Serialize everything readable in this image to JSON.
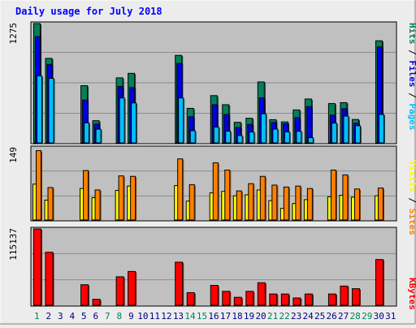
{
  "title": "Daily usage for July 2018",
  "colors": {
    "background": "#ececec",
    "plot_bg": "#c0c0c0",
    "grid": "#8c8c8c",
    "hits": "#00805c",
    "files": "#0000e6",
    "pages": "#00c0ff",
    "visits": "#ffff00",
    "sites": "#ff8000",
    "kbytes": "#ff0000",
    "title": "#0000ff",
    "weekend_day": "#00805c",
    "weekday": "#000080"
  },
  "legend_top": [
    {
      "key": "pages",
      "label": "Pages"
    },
    {
      "key": "sep1",
      "label": " / "
    },
    {
      "key": "files",
      "label": "Files"
    },
    {
      "key": "sep2",
      "label": " / "
    },
    {
      "key": "hits",
      "label": "Hits"
    }
  ],
  "legend_mid": [
    {
      "key": "sites",
      "label": "Sites"
    },
    {
      "key": "sep1",
      "label": " / "
    },
    {
      "key": "visits",
      "label": "Visits"
    }
  ],
  "legend_bottom": [
    {
      "key": "kbytes",
      "label": "KBytes"
    }
  ],
  "chart_data": {
    "type": "bar",
    "title": "Daily usage for July 2018",
    "categories": [
      "1",
      "2",
      "3",
      "4",
      "5",
      "6",
      "7",
      "8",
      "9",
      "10",
      "11",
      "12",
      "13",
      "14",
      "15",
      "16",
      "17",
      "18",
      "19",
      "20",
      "21",
      "22",
      "23",
      "24",
      "25",
      "26",
      "27",
      "28",
      "29",
      "30",
      "31"
    ],
    "weekend_days": [
      "1",
      "7",
      "8",
      "14",
      "15",
      "21",
      "22",
      "28",
      "29"
    ],
    "panels": [
      {
        "name": "hits_files_pages",
        "ymax_label": "1275",
        "ylim": [
          0,
          1275
        ],
        "series": [
          {
            "name": "Hits",
            "values": [
              1275,
              903,
              0,
              0,
              611,
              237,
              0,
              695,
              743,
              0,
              0,
              0,
              935,
              369,
              0,
              505,
              408,
              220,
              263,
              651,
              248,
              224,
              352,
              469,
              0,
              420,
              430,
              250,
              0,
              1091,
              0
            ]
          },
          {
            "name": "Files",
            "values": [
              1136,
              839,
              0,
              0,
              457,
              201,
              0,
              603,
              590,
              0,
              0,
              0,
              848,
              280,
              0,
              408,
              303,
              165,
              197,
              480,
              218,
              204,
              269,
              388,
              0,
              296,
              365,
              210,
              0,
              1026,
              0
            ]
          },
          {
            "name": "Pages",
            "values": [
              716,
              690,
              0,
              0,
              214,
              146,
              0,
              480,
              427,
              0,
              0,
              0,
              480,
              130,
              0,
              169,
              125,
              78,
              116,
              311,
              147,
              118,
              124,
              56,
              0,
              211,
              286,
              183,
              0,
              304,
              0
            ]
          }
        ]
      },
      {
        "name": "sites_visits",
        "ymax_label": "149",
        "ylim": [
          0,
          149
        ],
        "series": [
          {
            "name": "Visits",
            "values": [
              74,
              41,
              0,
              0,
              65,
              46,
              0,
              61,
              70,
              0,
              0,
              0,
              71,
              39,
              0,
              56,
              59,
              50,
              52,
              62,
              40,
              24,
              34,
              42,
              0,
              48,
              51,
              47,
              0,
              50,
              0
            ]
          },
          {
            "name": "Sites",
            "values": [
              143,
              67,
              0,
              0,
              102,
              62,
              0,
              91,
              90,
              0,
              0,
              0,
              126,
              73,
              0,
              118,
              103,
              60,
              75,
              90,
              72,
              68,
              70,
              65,
              0,
              103,
              93,
              64,
              0,
              66,
              0
            ]
          }
        ]
      },
      {
        "name": "kbytes",
        "ymax_label": "115137",
        "ylim": [
          0,
          115137
        ],
        "series": [
          {
            "name": "KBytes",
            "values": [
              115137,
              80000,
              0,
              0,
              31000,
              9000,
              0,
              43000,
              51000,
              0,
              0,
              0,
              65000,
              19000,
              0,
              30000,
              21000,
              12000,
              21000,
              34000,
              17000,
              17000,
              11000,
              17000,
              0,
              17000,
              29000,
              25000,
              0,
              69000,
              0
            ]
          }
        ]
      }
    ]
  }
}
